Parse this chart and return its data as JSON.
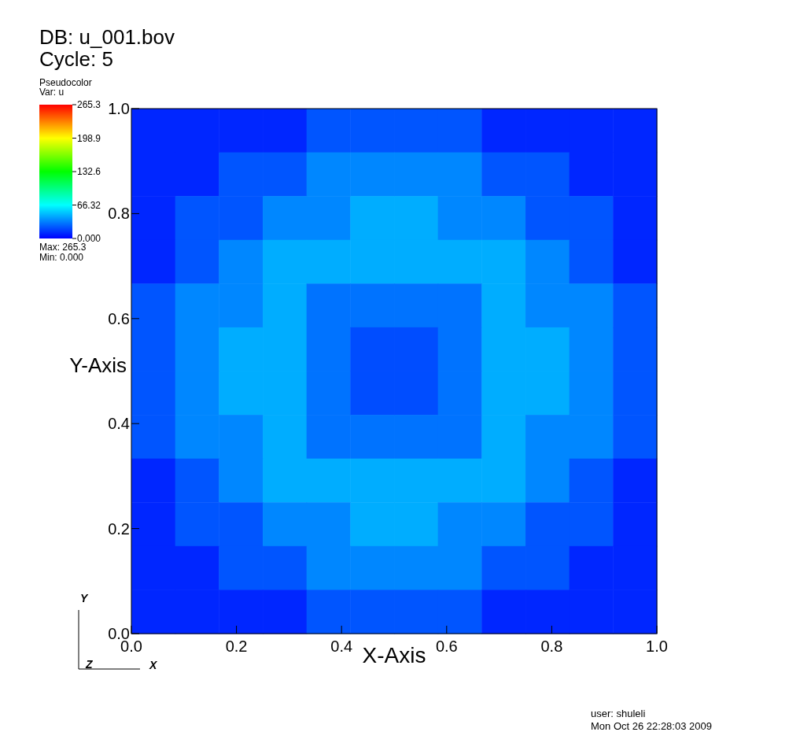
{
  "chart_data": {
    "type": "heatmap",
    "title": "DB: u_001.bov",
    "subtitle": "Cycle: 5",
    "xlabel": "X-Axis",
    "ylabel": "Y-Axis",
    "legend_title": "Pseudocolor",
    "clabel": "Var: u",
    "x": [
      0.0417,
      0.125,
      0.2083,
      0.2917,
      0.375,
      0.4583,
      0.5417,
      0.625,
      0.7083,
      0.7917,
      0.875,
      0.9583
    ],
    "y": [
      0.9583,
      0.875,
      0.7917,
      0.7083,
      0.625,
      0.5417,
      0.4583,
      0.375,
      0.2917,
      0.2083,
      0.125,
      0.0417
    ],
    "xlim": [
      0,
      1
    ],
    "ylim": [
      0,
      1
    ],
    "xticks": [
      {
        "value": 0,
        "label": "0.0"
      },
      {
        "value": 0.2,
        "label": "0.2"
      },
      {
        "value": 0.4,
        "label": "0.4"
      },
      {
        "value": 0.6,
        "label": "0.6"
      },
      {
        "value": 0.8,
        "label": "0.8"
      },
      {
        "value": 1,
        "label": "1.0"
      }
    ],
    "yticks": [
      {
        "value": 0,
        "label": "0.0"
      },
      {
        "value": 0.2,
        "label": "0.2"
      },
      {
        "value": 0.4,
        "label": "0.4"
      },
      {
        "value": 0.6,
        "label": "0.6"
      },
      {
        "value": 0.8,
        "label": "0.8"
      },
      {
        "value": 1,
        "label": "1.0"
      }
    ],
    "clim": [
      0,
      265.3
    ],
    "cticks": [
      {
        "value": 0,
        "label": "0.000"
      },
      {
        "value": 66.32,
        "label": "66.32"
      },
      {
        "value": 132.6,
        "label": "132.6"
      },
      {
        "value": 198.9,
        "label": "198.9"
      },
      {
        "value": 265.3,
        "label": "265.3"
      }
    ],
    "cells": [
      [
        10,
        10,
        10,
        10,
        22,
        22,
        22,
        22,
        10,
        10,
        10,
        10
      ],
      [
        10,
        10,
        22,
        22,
        35,
        35,
        35,
        35,
        22,
        22,
        10,
        10
      ],
      [
        10,
        22,
        22,
        35,
        35,
        45,
        45,
        35,
        35,
        22,
        22,
        10
      ],
      [
        10,
        22,
        35,
        45,
        45,
        45,
        45,
        45,
        45,
        35,
        22,
        10
      ],
      [
        22,
        35,
        35,
        45,
        30,
        30,
        30,
        30,
        45,
        35,
        35,
        22
      ],
      [
        22,
        35,
        45,
        45,
        30,
        20,
        20,
        30,
        45,
        45,
        35,
        22
      ],
      [
        22,
        35,
        45,
        45,
        30,
        20,
        20,
        30,
        45,
        45,
        35,
        22
      ],
      [
        22,
        35,
        35,
        45,
        30,
        30,
        30,
        30,
        45,
        35,
        35,
        22
      ],
      [
        10,
        22,
        35,
        45,
        45,
        45,
        45,
        45,
        45,
        35,
        22,
        10
      ],
      [
        10,
        22,
        22,
        35,
        35,
        45,
        45,
        35,
        35,
        22,
        22,
        10
      ],
      [
        10,
        10,
        22,
        22,
        35,
        35,
        35,
        35,
        22,
        22,
        10,
        10
      ],
      [
        10,
        10,
        10,
        10,
        22,
        22,
        22,
        22,
        10,
        10,
        10,
        10
      ]
    ],
    "annotations": [
      "Max:  265.3",
      "Min:  0.000",
      "user: shuleli",
      "Mon Oct 26 22:28:03 2009",
      "Y",
      "Z",
      "X"
    ]
  }
}
